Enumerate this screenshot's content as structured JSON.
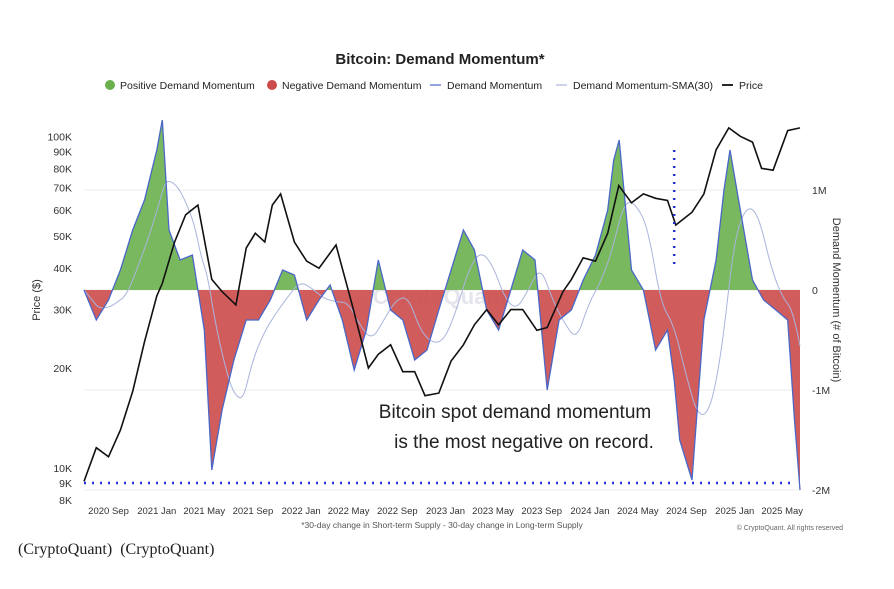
{
  "chart_data": {
    "type": "area",
    "title": "Bitcoin: Demand Momentum*",
    "legend": [
      "Positive Demand Momentum",
      "Negative Demand Momentum",
      "Demand Momentum",
      "Demand Momentum-SMA(30)",
      "Price"
    ],
    "ylabel_left": "Price ($)",
    "ylabel_right": "Demand Momentum (# of Bitcoin)",
    "price_scale": "log",
    "price_ylim": [
      8000,
      120000
    ],
    "price_ticks": [
      "100K",
      "90K",
      "80K",
      "70K",
      "60K",
      "50K",
      "40K",
      "30K",
      "20K",
      "10K",
      "9K",
      "8K"
    ],
    "momentum_ylim": [
      -2100000,
      1800000
    ],
    "momentum_ticks": [
      "1M",
      "0",
      "-1M",
      "-2M"
    ],
    "x_ticks": [
      "2020 Sep",
      "2021 Jan",
      "2021 May",
      "2021 Sep",
      "2022 Jan",
      "2022 May",
      "2022 Sep",
      "2023 Jan",
      "2023 May",
      "2023 Sep",
      "2024 Jan",
      "2024 May",
      "2024 Sep",
      "2025 Jan",
      "2025 May"
    ],
    "x_range": [
      "2020-07-01",
      "2025-06-15"
    ],
    "footnote": "*30-day change in Short-term Supply - 30-day change in Long-term Supply",
    "annotation": [
      "Bitcoin spot demand momentum",
      "is the most negative on record."
    ],
    "copyright": "© CryptoQuant. All rights reserved",
    "watermark": "CryptoQuant",
    "reference_line": {
      "value": -1930000,
      "style": "dotted",
      "color": "#2233cc"
    },
    "demand_momentum": {
      "x": [
        "2020-07-01",
        "2020-08-01",
        "2020-09-01",
        "2020-10-01",
        "2020-11-01",
        "2020-12-01",
        "2021-01-01",
        "2021-01-15",
        "2021-02-01",
        "2021-03-01",
        "2021-04-01",
        "2021-05-01",
        "2021-05-20",
        "2021-06-15",
        "2021-07-15",
        "2021-08-15",
        "2021-09-15",
        "2021-10-15",
        "2021-11-15",
        "2021-12-15",
        "2022-01-15",
        "2022-02-15",
        "2022-03-15",
        "2022-04-15",
        "2022-05-15",
        "2022-06-15",
        "2022-07-15",
        "2022-08-15",
        "2022-09-15",
        "2022-10-15",
        "2022-11-15",
        "2022-12-15",
        "2023-01-15",
        "2023-02-15",
        "2023-03-15",
        "2023-04-15",
        "2023-05-15",
        "2023-06-15",
        "2023-07-15",
        "2023-08-15",
        "2023-09-15",
        "2023-10-15",
        "2023-11-15",
        "2023-12-15",
        "2024-01-15",
        "2024-02-15",
        "2024-03-01",
        "2024-03-15",
        "2024-04-15",
        "2024-05-15",
        "2024-06-15",
        "2024-07-15",
        "2024-08-01",
        "2024-08-15",
        "2024-09-15",
        "2024-10-15",
        "2024-11-15",
        "2024-12-05",
        "2024-12-20",
        "2025-01-15",
        "2025-02-15",
        "2025-03-15",
        "2025-04-15",
        "2025-05-15",
        "2025-06-01",
        "2025-06-15"
      ],
      "y": [
        0,
        -300000,
        -100000,
        200000,
        600000,
        900000,
        1400000,
        1700000,
        600000,
        300000,
        350000,
        -400000,
        -1800000,
        -1200000,
        -700000,
        -300000,
        -300000,
        -100000,
        200000,
        150000,
        -300000,
        -100000,
        50000,
        -300000,
        -800000,
        -400000,
        300000,
        -200000,
        -300000,
        -700000,
        -600000,
        -200000,
        200000,
        600000,
        400000,
        -200000,
        -400000,
        0,
        400000,
        300000,
        -1000000,
        -300000,
        -200000,
        100000,
        350000,
        800000,
        1300000,
        1500000,
        200000,
        0,
        -600000,
        -400000,
        -900000,
        -1500000,
        -1900000,
        -300000,
        300000,
        1000000,
        1400000,
        800000,
        100000,
        -100000,
        -200000,
        -300000,
        -1300000,
        -2000000
      ]
    },
    "price": {
      "x": [
        "2020-07-01",
        "2020-08-01",
        "2020-09-01",
        "2020-10-01",
        "2020-11-01",
        "2020-12-01",
        "2021-01-01",
        "2021-01-15",
        "2021-02-15",
        "2021-03-15",
        "2021-04-15",
        "2021-05-20",
        "2021-06-15",
        "2021-07-20",
        "2021-08-15",
        "2021-09-07",
        "2021-10-01",
        "2021-10-20",
        "2021-11-10",
        "2021-12-15",
        "2022-01-15",
        "2022-02-15",
        "2022-03-30",
        "2022-05-10",
        "2022-06-20",
        "2022-07-15",
        "2022-08-15",
        "2022-09-15",
        "2022-10-15",
        "2022-11-10",
        "2022-12-15",
        "2023-01-15",
        "2023-02-15",
        "2023-03-15",
        "2023-04-15",
        "2023-05-15",
        "2023-06-15",
        "2023-07-15",
        "2023-08-20",
        "2023-09-15",
        "2023-10-25",
        "2023-11-15",
        "2023-12-15",
        "2024-01-15",
        "2024-02-15",
        "2024-03-14",
        "2024-04-15",
        "2024-05-15",
        "2024-06-15",
        "2024-07-15",
        "2024-08-05",
        "2024-09-15",
        "2024-10-15",
        "2024-11-15",
        "2024-12-17",
        "2025-01-15",
        "2025-02-15",
        "2025-03-10",
        "2025-04-08",
        "2025-05-15",
        "2025-06-15"
      ],
      "y": [
        9100,
        11500,
        10800,
        13000,
        17000,
        24000,
        33000,
        36000,
        48000,
        58000,
        62000,
        37000,
        34000,
        31000,
        46000,
        51000,
        48000,
        62000,
        67000,
        48000,
        42000,
        40000,
        47000,
        31000,
        20000,
        22000,
        23500,
        19500,
        19500,
        16500,
        16800,
        21000,
        23500,
        27000,
        30000,
        27000,
        30000,
        30000,
        26000,
        26500,
        34000,
        37000,
        43000,
        42000,
        51000,
        71000,
        63000,
        67000,
        65000,
        64000,
        54000,
        59000,
        67000,
        91000,
        106000,
        100000,
        96000,
        80000,
        79000,
        104000,
        106000
      ]
    }
  }
}
